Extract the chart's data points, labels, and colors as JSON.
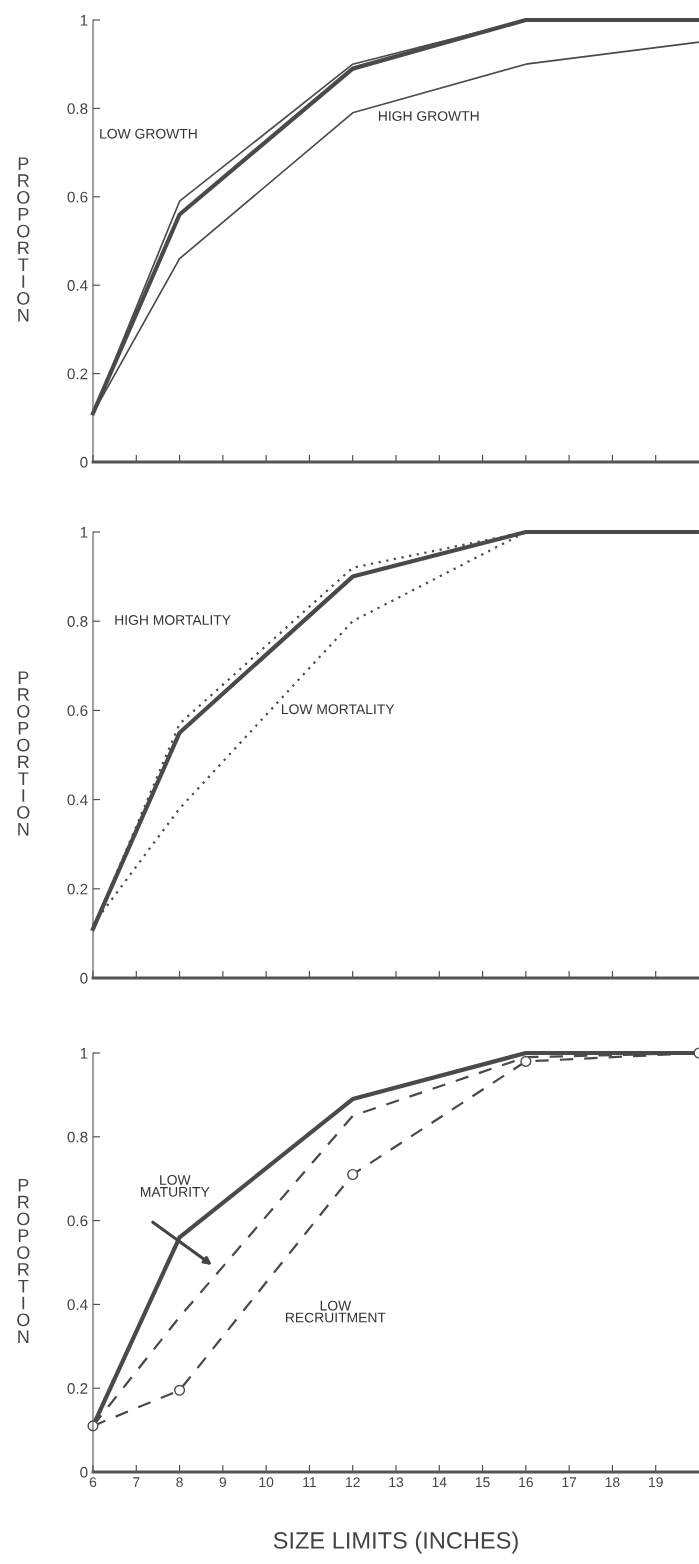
{
  "chart_data": [
    {
      "type": "line",
      "ylabel": "PROPORTION",
      "x": [
        6,
        8,
        12,
        16,
        20
      ],
      "xlim": [
        6,
        20
      ],
      "xticks": [
        {
          "value": 6,
          "label": null
        },
        {
          "value": 7,
          "label": null
        },
        {
          "value": 8,
          "label": null
        },
        {
          "value": 9,
          "label": null
        },
        {
          "value": 10,
          "label": null
        },
        {
          "value": 11,
          "label": null
        },
        {
          "value": 12,
          "label": null
        },
        {
          "value": 13,
          "label": null
        },
        {
          "value": 14,
          "label": null
        },
        {
          "value": 15,
          "label": null
        },
        {
          "value": 16,
          "label": null
        },
        {
          "value": 17,
          "label": null
        },
        {
          "value": 18,
          "label": null
        },
        {
          "value": 19,
          "label": null
        }
      ],
      "ylim": [
        0,
        1
      ],
      "yticks": [
        0,
        0.2,
        0.4,
        0.6,
        0.8,
        1
      ],
      "tick_labels": "y",
      "grid": false,
      "legend": false,
      "series": [
        {
          "color": "#4a4a4a",
          "values": [
            0.11,
            0.56,
            0.89,
            1.0,
            1.0
          ],
          "line_style": "solid"
        },
        {
          "color": "#4a4a4a",
          "values": [
            0.11,
            0.59,
            0.9,
            1.0,
            1.0
          ],
          "line_style": "solid"
        },
        {
          "color": "#4a4a4a",
          "values": [
            0.11,
            0.46,
            0.79,
            0.9,
            0.95
          ],
          "line_style": "solid"
        }
      ],
      "annotations": [
        "LOW GROWTH",
        "HIGH GROWTH"
      ]
    },
    {
      "type": "line",
      "ylabel": "PROPORTION",
      "x": [
        6,
        8,
        12,
        16,
        20
      ],
      "xlim": [
        6,
        20
      ],
      "xticks": [
        {
          "value": 6,
          "label": null
        },
        {
          "value": 7,
          "label": null
        },
        {
          "value": 8,
          "label": null
        },
        {
          "value": 9,
          "label": null
        },
        {
          "value": 10,
          "label": null
        },
        {
          "value": 11,
          "label": null
        },
        {
          "value": 12,
          "label": null
        },
        {
          "value": 13,
          "label": null
        },
        {
          "value": 14,
          "label": null
        },
        {
          "value": 15,
          "label": null
        },
        {
          "value": 16,
          "label": null
        },
        {
          "value": 17,
          "label": null
        },
        {
          "value": 18,
          "label": null
        },
        {
          "value": 19,
          "label": null
        }
      ],
      "ylim": [
        0,
        1
      ],
      "yticks": [
        0,
        0.2,
        0.4,
        0.6,
        0.8,
        1
      ],
      "tick_labels": "y",
      "grid": false,
      "legend": false,
      "series": [
        {
          "color": "#4a4a4a",
          "values": [
            0.11,
            0.55,
            0.9,
            1.0,
            1.0
          ],
          "line_style": "solid"
        },
        {
          "color": "#4a4a4a",
          "values": [
            0.11,
            0.57,
            0.92,
            1.0,
            1.0
          ],
          "line_style": "dotted"
        },
        {
          "color": "#4a4a4a",
          "values": [
            0.12,
            0.38,
            0.8,
            1.0,
            1.0
          ],
          "line_style": "dotted"
        }
      ],
      "annotations": [
        "HIGH MORTALITY",
        "LOW MORTALITY"
      ]
    },
    {
      "type": "line",
      "ylabel": "PROPORTION",
      "xlabel": "SIZE LIMITS (INCHES)",
      "x": [
        6,
        8,
        12,
        16,
        20
      ],
      "xlim": [
        6,
        20
      ],
      "xticks": [
        6,
        7,
        8,
        9,
        10,
        11,
        12,
        13,
        14,
        15,
        16,
        17,
        18,
        19
      ],
      "ylim": [
        0,
        1
      ],
      "yticks": [
        0,
        0.2,
        0.4,
        0.6,
        0.8,
        1
      ],
      "grid": false,
      "legend": false,
      "series": [
        {
          "color": "#4a4a4a",
          "values": [
            0.11,
            0.56,
            0.89,
            1.0,
            1.0
          ],
          "line_style": "solid"
        },
        {
          "color": "#4a4a4a",
          "values": [
            0.11,
            0.37,
            0.85,
            0.99,
            1.0
          ],
          "line_style": "dashed"
        },
        {
          "color": "#4a4a4a",
          "values": [
            0.11,
            0.195,
            0.71,
            0.98,
            1.0
          ],
          "line_style": "dashed",
          "marker": "circle"
        }
      ],
      "annotations": [
        "LOW\nMATURITY",
        "LOW\nRECRUITMENT"
      ]
    }
  ]
}
